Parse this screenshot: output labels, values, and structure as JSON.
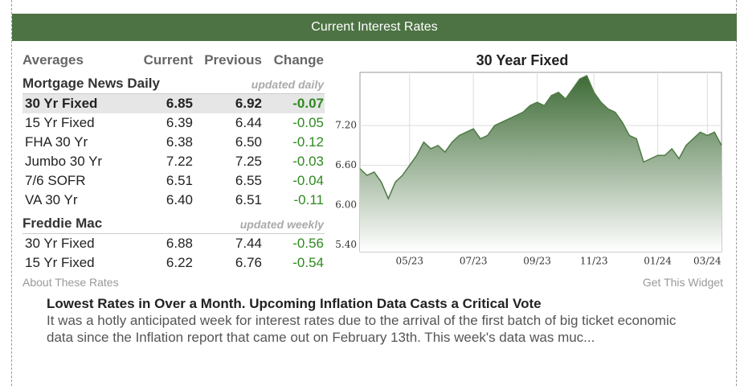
{
  "header": {
    "title": "Current Interest Rates"
  },
  "table": {
    "columns": [
      "Averages",
      "Current",
      "Previous",
      "Change"
    ],
    "sections": [
      {
        "name": "Mortgage News Daily",
        "note": "updated daily",
        "rows": [
          [
            "30 Yr Fixed",
            "6.85",
            "6.92",
            "-0.07"
          ],
          [
            "15 Yr Fixed",
            "6.39",
            "6.44",
            "-0.05"
          ],
          [
            "FHA 30 Yr",
            "6.38",
            "6.50",
            "-0.12"
          ],
          [
            "Jumbo 30 Yr",
            "7.22",
            "7.25",
            "-0.03"
          ],
          [
            "7/6 SOFR",
            "6.51",
            "6.55",
            "-0.04"
          ],
          [
            "VA 30 Yr",
            "6.40",
            "6.51",
            "-0.11"
          ]
        ]
      },
      {
        "name": "Freddie Mac",
        "note": "updated weekly",
        "rows": [
          [
            "30 Yr Fixed",
            "6.88",
            "7.44",
            "-0.56"
          ],
          [
            "15 Yr Fixed",
            "6.22",
            "6.76",
            "-0.54"
          ]
        ]
      }
    ]
  },
  "links": {
    "about": "About These Rates",
    "widget": "Get This Widget"
  },
  "article": {
    "title": "Lowest Rates in Over a Month. Upcoming Inflation Data Casts a Critical Vote",
    "text": "It was a hotly anticipated week for interest rates due to the arrival of the first batch of big ticket economic data since the Inflation report that came out on February 13th. This week's data was muc..."
  },
  "chart_data": {
    "type": "area",
    "title": "30 Year Fixed",
    "categories": [
      null,
      null,
      null,
      null,
      null,
      null,
      null,
      "05/23",
      null,
      null,
      null,
      null,
      null,
      null,
      null,
      null,
      "07/23",
      null,
      null,
      null,
      null,
      null,
      null,
      null,
      null,
      "09/23",
      null,
      null,
      null,
      null,
      null,
      null,
      null,
      "11/23",
      null,
      null,
      null,
      null,
      null,
      null,
      null,
      null,
      "01/24",
      null,
      null,
      null,
      null,
      null,
      null,
      "03/24",
      null,
      null
    ],
    "values": [
      6.55,
      6.45,
      6.5,
      6.35,
      6.1,
      6.35,
      6.45,
      6.6,
      6.75,
      6.95,
      6.85,
      6.9,
      6.8,
      6.95,
      7.05,
      7.1,
      7.15,
      7.0,
      7.05,
      7.2,
      7.25,
      7.3,
      7.35,
      7.4,
      7.5,
      7.55,
      7.5,
      7.65,
      7.7,
      7.6,
      7.75,
      7.9,
      7.95,
      7.7,
      7.55,
      7.45,
      7.4,
      7.25,
      7.05,
      7.0,
      6.65,
      6.7,
      6.75,
      6.75,
      6.85,
      6.7,
      6.9,
      7.0,
      7.1,
      7.05,
      7.1,
      6.9
    ],
    "color": "#4e7a45",
    "ylim": [
      5.3,
      8.0
    ],
    "yticks": [
      {
        "value": 5.4,
        "label": "5.40"
      },
      {
        "value": 6.0,
        "label": "6.00"
      },
      {
        "value": 6.6,
        "label": "6.60"
      },
      {
        "value": 7.2,
        "label": "7.20"
      }
    ],
    "grid": true
  }
}
